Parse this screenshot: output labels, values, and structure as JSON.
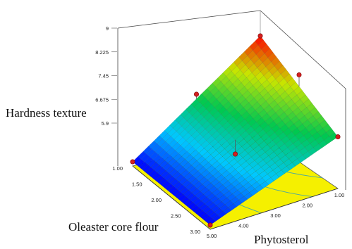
{
  "chart_data": {
    "type": "surface3d",
    "title": "",
    "zlabel": "Hardness texture",
    "xlabel": "Oleaster core flour",
    "ylabel": "Phytosterol",
    "x_ticks": [
      "1.00",
      "1.50",
      "2.00",
      "2.50",
      "3.00"
    ],
    "y_ticks": [
      "5.00",
      "4.00",
      "3.00",
      "2.00",
      "1.00"
    ],
    "z_ticks": [
      "5.9",
      "6.675",
      "7.45",
      "8.225",
      "9"
    ],
    "xlim": [
      1,
      3
    ],
    "ylim": [
      1,
      5
    ],
    "zlim": [
      5.9,
      9
    ],
    "surface_corners": [
      {
        "oleaster": 1.0,
        "phytosterol": 1.0,
        "hardness": 9.0
      },
      {
        "oleaster": 3.0,
        "phytosterol": 1.0,
        "hardness": 7.45
      },
      {
        "oleaster": 1.0,
        "phytosterol": 5.0,
        "hardness": 5.9
      },
      {
        "oleaster": 3.0,
        "phytosterol": 5.0,
        "hardness": 5.9
      }
    ],
    "design_points": [
      {
        "oleaster": 1.0,
        "phytosterol": 1.0,
        "hardness": 9.0
      },
      {
        "oleaster": 2.0,
        "phytosterol": 1.0,
        "hardness": 8.6
      },
      {
        "oleaster": 3.0,
        "phytosterol": 1.0,
        "hardness": 7.45
      },
      {
        "oleaster": 1.0,
        "phytosterol": 3.0,
        "hardness": 7.6
      },
      {
        "oleaster": 2.0,
        "phytosterol": 3.0,
        "hardness": 6.6
      },
      {
        "oleaster": 1.0,
        "phytosterol": 5.0,
        "hardness": 5.9
      },
      {
        "oleaster": 3.0,
        "phytosterol": 5.0,
        "hardness": 5.9
      }
    ],
    "colormap": [
      "#0000ff",
      "#00c8ff",
      "#00c850",
      "#c8e600",
      "#ff0000"
    ],
    "contour_color": "#f5f000",
    "point_color": "#d42020",
    "grid": false
  }
}
